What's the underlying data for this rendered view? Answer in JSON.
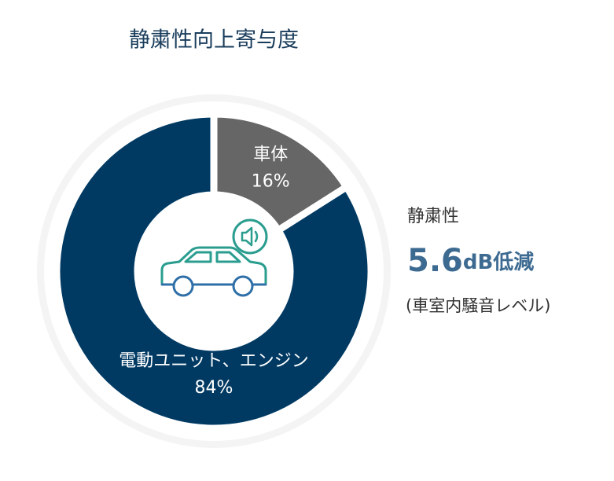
{
  "chart_data": {
    "type": "pie",
    "title": "静粛性向上寄与度",
    "categories": [
      "車体",
      "電動ユニット、エンジン"
    ],
    "values": [
      16,
      84
    ],
    "value_labels": [
      "16%",
      "84%"
    ],
    "colors": [
      "#666666",
      "#003a63"
    ],
    "annotation": {
      "label": "静粛性",
      "value": 5.6,
      "unit": "dB低減",
      "note": "(車室内騒音レベル)"
    }
  }
}
